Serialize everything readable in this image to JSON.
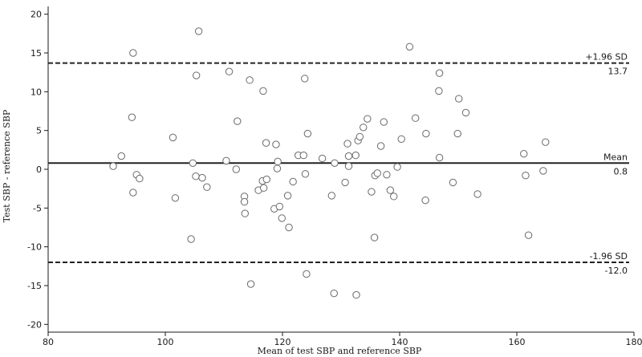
{
  "chart_data": {
    "type": "scatter",
    "xlabel": "Mean of test SBP and reference SBP",
    "ylabel": "Test SBP - reference SBP",
    "xlim": [
      80,
      180
    ],
    "ylim": [
      -21,
      21
    ],
    "xticks": [
      80,
      100,
      120,
      140,
      160,
      180
    ],
    "yticks": [
      -20,
      -15,
      -10,
      -5,
      0,
      5,
      10,
      15,
      20
    ],
    "grid": false,
    "reference_lines": [
      {
        "y": 13.7,
        "style": "dashed",
        "label_above": "+1.96 SD",
        "label_below": "13.7"
      },
      {
        "y": 0.8,
        "style": "solid",
        "label_above": "Mean",
        "label_below": "0.8"
      },
      {
        "y": -12.0,
        "style": "dashed",
        "label_above": "-1.96 SD",
        "label_below": "-12.0"
      }
    ],
    "points": [
      [
        91.1,
        0.4
      ],
      [
        92.5,
        1.7
      ],
      [
        94.3,
        6.7
      ],
      [
        94.5,
        15.0
      ],
      [
        94.5,
        -3.0
      ],
      [
        95.1,
        -0.7
      ],
      [
        95.6,
        -1.2
      ],
      [
        101.3,
        4.1
      ],
      [
        101.7,
        -3.7
      ],
      [
        104.4,
        -9.0
      ],
      [
        104.7,
        0.8
      ],
      [
        105.2,
        -0.9
      ],
      [
        105.3,
        12.1
      ],
      [
        105.7,
        17.8
      ],
      [
        106.3,
        -1.1
      ],
      [
        107.1,
        -2.3
      ],
      [
        110.4,
        1.1
      ],
      [
        110.9,
        12.6
      ],
      [
        112.1,
        0.0
      ],
      [
        112.3,
        6.2
      ],
      [
        113.5,
        -3.5
      ],
      [
        113.5,
        -4.2
      ],
      [
        113.6,
        -5.7
      ],
      [
        114.4,
        11.5
      ],
      [
        114.6,
        -14.8
      ],
      [
        115.9,
        -2.7
      ],
      [
        116.6,
        -1.5
      ],
      [
        116.7,
        10.1
      ],
      [
        116.8,
        -2.4
      ],
      [
        117.2,
        3.4
      ],
      [
        117.3,
        -1.3
      ],
      [
        118.6,
        -5.1
      ],
      [
        118.9,
        3.2
      ],
      [
        119.1,
        0.1
      ],
      [
        119.2,
        1.0
      ],
      [
        119.5,
        -4.8
      ],
      [
        119.9,
        -6.3
      ],
      [
        120.9,
        -3.4
      ],
      [
        121.1,
        -7.5
      ],
      [
        121.8,
        -1.6
      ],
      [
        122.7,
        1.8
      ],
      [
        123.6,
        1.8
      ],
      [
        123.8,
        11.7
      ],
      [
        123.9,
        -0.6
      ],
      [
        124.1,
        -13.5
      ],
      [
        124.3,
        4.6
      ],
      [
        126.8,
        1.4
      ],
      [
        128.4,
        -3.4
      ],
      [
        128.8,
        -16.0
      ],
      [
        128.9,
        0.8
      ],
      [
        130.7,
        -1.7
      ],
      [
        131.1,
        3.3
      ],
      [
        131.3,
        0.4
      ],
      [
        131.3,
        1.7
      ],
      [
        132.5,
        1.8
      ],
      [
        132.6,
        -16.2
      ],
      [
        132.9,
        3.7
      ],
      [
        133.2,
        4.2
      ],
      [
        133.8,
        5.4
      ],
      [
        134.5,
        6.5
      ],
      [
        135.2,
        -2.9
      ],
      [
        135.7,
        -8.8
      ],
      [
        135.8,
        -0.8
      ],
      [
        136.2,
        -0.5
      ],
      [
        136.8,
        3.0
      ],
      [
        137.3,
        6.1
      ],
      [
        137.8,
        -0.7
      ],
      [
        138.4,
        -2.7
      ],
      [
        139.0,
        -3.5
      ],
      [
        139.6,
        0.3
      ],
      [
        140.3,
        3.9
      ],
      [
        141.7,
        15.8
      ],
      [
        142.7,
        6.6
      ],
      [
        144.4,
        -4.0
      ],
      [
        144.5,
        4.6
      ],
      [
        146.8,
        12.4
      ],
      [
        146.7,
        10.1
      ],
      [
        146.8,
        1.5
      ],
      [
        149.1,
        -1.7
      ],
      [
        149.9,
        4.6
      ],
      [
        150.1,
        9.1
      ],
      [
        151.3,
        7.3
      ],
      [
        153.3,
        -3.2
      ],
      [
        161.2,
        2.0
      ],
      [
        161.5,
        -0.8
      ],
      [
        162.0,
        -8.5
      ],
      [
        164.5,
        -0.2
      ],
      [
        164.9,
        3.5
      ]
    ]
  }
}
